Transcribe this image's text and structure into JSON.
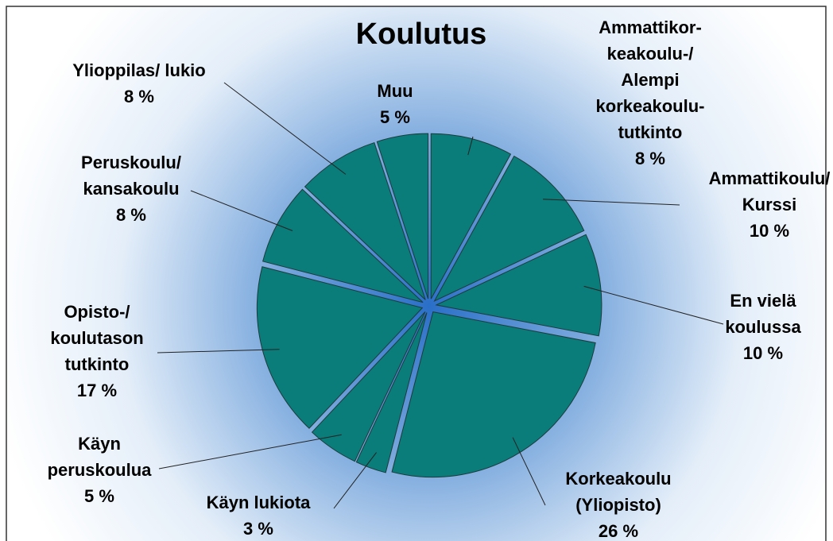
{
  "chart_data": {
    "type": "pie",
    "title": "Koulutus",
    "categories": [
      "Ammattikor-\nkeakoulu-/\nAlempi\nkorkeakoulu-\ntutkinto",
      "Ammattikoulu/\nKurssi",
      "En vielä\nkoulussa",
      "Korkeakoulu\n(Yliopisto)",
      "Käyn lukiota",
      "Käyn\nperuskoulua",
      "Opisto-/\nkoulutason\ntutkinto",
      "Peruskoulu/\nkansakoulu",
      "Ylioppilas/ lukio",
      "Muu"
    ],
    "values": [
      8,
      10,
      10,
      26,
      3,
      5,
      17,
      8,
      8,
      5
    ],
    "value_labels": [
      "8 %",
      "10 %",
      "10 %",
      "26 %",
      "3 %",
      "5 %",
      "17 %",
      "8 %",
      "8 %",
      "5 %"
    ],
    "color": "#0a7c79"
  }
}
